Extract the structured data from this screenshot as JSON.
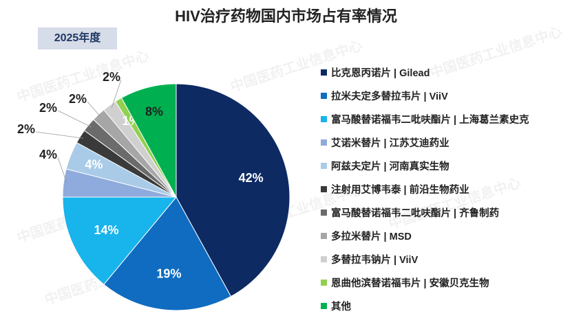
{
  "chart_data": {
    "type": "pie",
    "title": "HIV治疗药物国内市场占有率情况",
    "subtitle": "2025年度",
    "categories": [
      "比克恩丙诺片 | Gilead",
      "拉米夫定多替拉韦片 | ViiV",
      "富马酸替诺福韦二吡呋酯片 | 上海葛兰素史克",
      "艾诺米替片 | 江苏艾迪药业",
      "阿兹夫定片 | 河南真实生物",
      "注射用艾博韦泰 | 前沿生物药业",
      "富马酸替诺福韦二吡呋酯片 | 齐鲁制药",
      "多拉米替片 | MSD",
      "多替拉韦钠片 | ViiV",
      "恩曲他滨替诺福韦片 | 安徽贝克生物",
      "其他"
    ],
    "values": [
      42,
      19,
      14,
      4,
      4,
      2,
      2,
      2,
      2,
      1,
      8
    ],
    "labels": [
      "42%",
      "19%",
      "14%",
      "4%",
      "4%",
      "2%",
      "2%",
      "2%",
      "2%",
      "1%",
      "8%"
    ],
    "colors": [
      "#0d2a63",
      "#0f6cc0",
      "#18b4ec",
      "#8faadc",
      "#a9cbe8",
      "#3a3a3a",
      "#6b6b6b",
      "#a6a6a6",
      "#d0d0d0",
      "#92d050",
      "#00b050"
    ],
    "legend_position": "right"
  },
  "watermark": "中国医药工业信息中心"
}
